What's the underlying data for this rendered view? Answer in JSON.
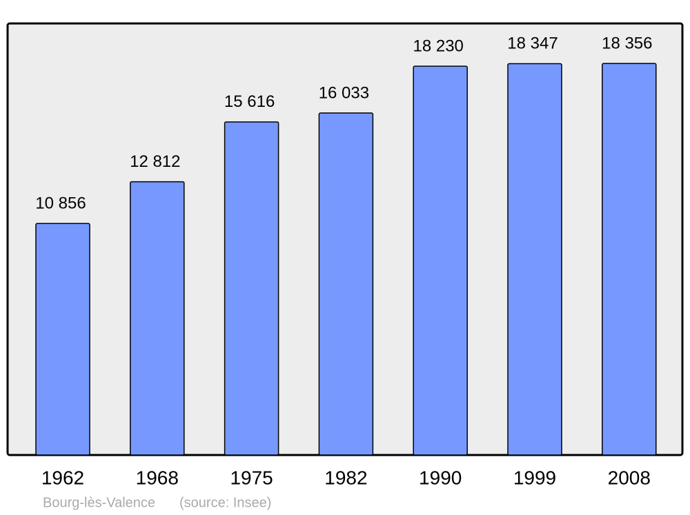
{
  "chart_data": {
    "type": "bar",
    "categories": [
      "1962",
      "1968",
      "1975",
      "1982",
      "1990",
      "1999",
      "2008"
    ],
    "values": [
      10856,
      12812,
      15616,
      16033,
      18230,
      18347,
      18356
    ],
    "value_labels": [
      "10 856",
      "12 812",
      "15 616",
      "16 033",
      "18 230",
      "18 347",
      "18 356"
    ],
    "color": "#7799ff",
    "ylim": [
      0,
      20200
    ],
    "caption": "Bourg-lès-Valence",
    "source": "(source: Insee)"
  }
}
